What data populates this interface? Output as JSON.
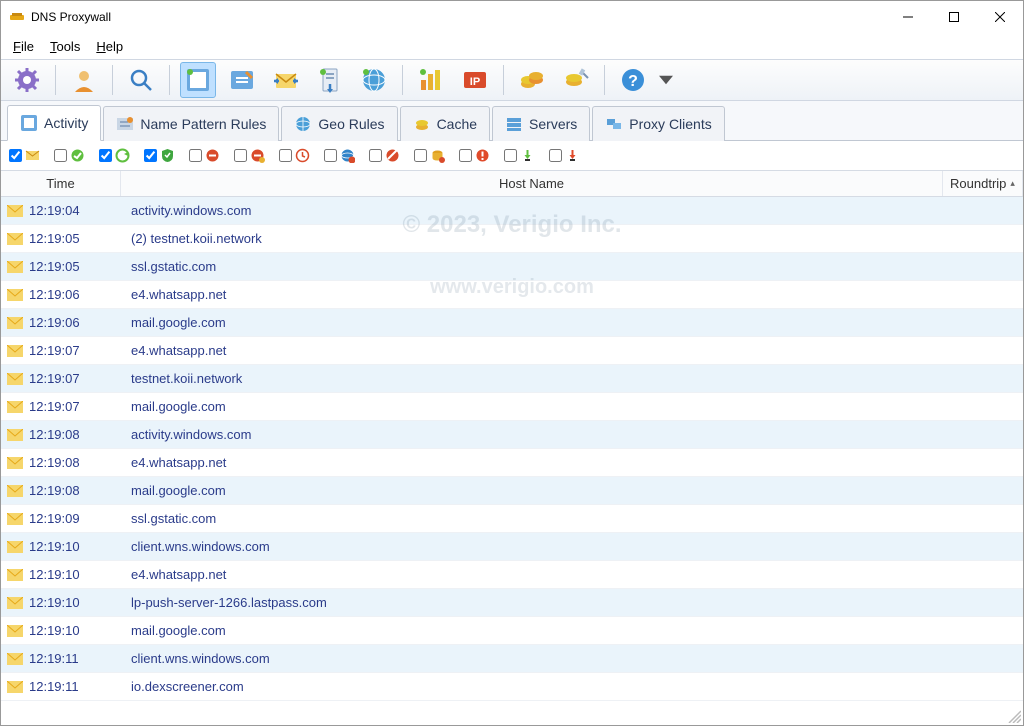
{
  "window": {
    "title": "DNS Proxywall"
  },
  "menus": {
    "file": "File",
    "tools": "Tools",
    "help": "Help"
  },
  "tabs": [
    {
      "id": "activity",
      "label": "Activity",
      "active": true
    },
    {
      "id": "patterns",
      "label": "Name Pattern Rules",
      "active": false
    },
    {
      "id": "geo",
      "label": "Geo Rules",
      "active": false
    },
    {
      "id": "cache",
      "label": "Cache",
      "active": false
    },
    {
      "id": "servers",
      "label": "Servers",
      "active": false
    },
    {
      "id": "clients",
      "label": "Proxy Clients",
      "active": false
    }
  ],
  "columns": {
    "time": "Time",
    "host": "Host Name",
    "roundtrip": "Roundtrip"
  },
  "filters": [
    {
      "name": "mail",
      "checked": true,
      "icon_color": "#e6a817"
    },
    {
      "name": "ok",
      "checked": false,
      "icon_color": "#5fbf3f"
    },
    {
      "name": "refresh",
      "checked": true,
      "icon_color": "#5fbf3f"
    },
    {
      "name": "shield",
      "checked": true,
      "icon_color": "#3fa63f"
    },
    {
      "name": "block",
      "checked": false,
      "icon_color": "#d94b2b"
    },
    {
      "name": "block2",
      "checked": false,
      "icon_color": "#d94b2b"
    },
    {
      "name": "clock",
      "checked": false,
      "icon_color": "#d94b2b"
    },
    {
      "name": "globe-block",
      "checked": false,
      "icon_color": "#3184c9"
    },
    {
      "name": "globe-warn",
      "checked": false,
      "icon_color": "#d94b2b"
    },
    {
      "name": "db-warn",
      "checked": false,
      "icon_color": "#e0a020"
    },
    {
      "name": "alert",
      "checked": false,
      "icon_color": "#e04b2b"
    },
    {
      "name": "down",
      "checked": false,
      "icon_color": "#303030"
    },
    {
      "name": "down-warn",
      "checked": false,
      "icon_color": "#e04b2b"
    }
  ],
  "watermarks": {
    "line1": "© 2023, Verigio Inc.",
    "line2": "www.verigio.com"
  },
  "colors": {
    "row_stripe_a": "#eaf4fb",
    "row_stripe_b": "#ffffff",
    "text_link": "#2a3b8a",
    "envelope_body": "#f6d66b",
    "envelope_flap": "#e6a817"
  },
  "rows": [
    {
      "time": "12:19:04",
      "host": "activity.windows.com",
      "stripe": "a"
    },
    {
      "time": "12:19:05",
      "host": "  (2) testnet.koii.network",
      "stripe": "b"
    },
    {
      "time": "12:19:05",
      "host": "ssl.gstatic.com",
      "stripe": "a"
    },
    {
      "time": "12:19:06",
      "host": "e4.whatsapp.net",
      "stripe": "b"
    },
    {
      "time": "12:19:06",
      "host": "mail.google.com",
      "stripe": "a"
    },
    {
      "time": "12:19:07",
      "host": "e4.whatsapp.net",
      "stripe": "b"
    },
    {
      "time": "12:19:07",
      "host": "testnet.koii.network",
      "stripe": "a"
    },
    {
      "time": "12:19:07",
      "host": "mail.google.com",
      "stripe": "b"
    },
    {
      "time": "12:19:08",
      "host": "activity.windows.com",
      "stripe": "a"
    },
    {
      "time": "12:19:08",
      "host": "e4.whatsapp.net",
      "stripe": "b"
    },
    {
      "time": "12:19:08",
      "host": "mail.google.com",
      "stripe": "a"
    },
    {
      "time": "12:19:09",
      "host": "ssl.gstatic.com",
      "stripe": "b"
    },
    {
      "time": "12:19:10",
      "host": "client.wns.windows.com",
      "stripe": "a"
    },
    {
      "time": "12:19:10",
      "host": "e4.whatsapp.net",
      "stripe": "b"
    },
    {
      "time": "12:19:10",
      "host": "lp-push-server-1266.lastpass.com",
      "stripe": "a"
    },
    {
      "time": "12:19:10",
      "host": "mail.google.com",
      "stripe": "b"
    },
    {
      "time": "12:19:11",
      "host": "client.wns.windows.com",
      "stripe": "a"
    },
    {
      "time": "12:19:11",
      "host": "io.dexscreener.com",
      "stripe": "b"
    }
  ]
}
